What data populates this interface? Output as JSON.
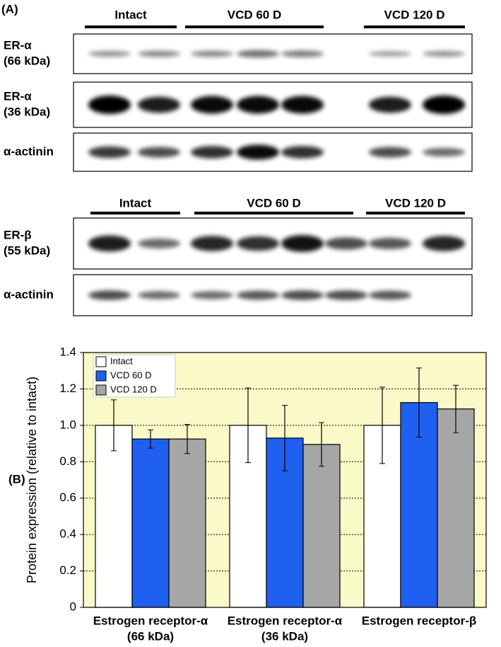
{
  "panel_a": {
    "label": "(A)",
    "blots": [
      {
        "groups": [
          "Intact",
          "VCD 60 D",
          "VCD 120 D"
        ],
        "rows": [
          [
            "ER-α",
            "(66 kDa)"
          ],
          [
            "ER-α",
            "(36 kDa)"
          ],
          [
            "α-actinin"
          ]
        ]
      },
      {
        "groups": [
          "Intact",
          "VCD 60 D",
          "VCD 120 D"
        ],
        "rows": [
          [
            "ER-β",
            "(55 kDa)"
          ],
          [
            "α-actinin"
          ]
        ]
      }
    ]
  },
  "chart_data": {
    "type": "bar",
    "panel_label": "(B)",
    "y_label": "Protein expression (relative to intact)",
    "categories": [
      [
        "Estrogen receptor-α",
        "(66 kDa)"
      ],
      [
        "Estrogen receptor-α",
        "(36 kDa)"
      ],
      [
        "Estrogen receptor-β"
      ]
    ],
    "series": [
      {
        "name": "Intact",
        "color": "#ffffff",
        "values": [
          1,
          1,
          1
        ],
        "errors": [
          0.14,
          0.205,
          0.21
        ]
      },
      {
        "name": "VCD 60 D",
        "color": "#2060f0",
        "values": [
          0.925,
          0.93,
          1.125
        ],
        "errors": [
          0.05,
          0.18,
          0.19
        ]
      },
      {
        "name": "VCD 120 D",
        "color": "#a6a6a6",
        "values": [
          0.925,
          0.895,
          1.09
        ],
        "errors": [
          0.08,
          0.12,
          0.13
        ]
      }
    ],
    "ylim": [
      0,
      1.4
    ],
    "yticks": [
      0,
      0.2,
      0.4,
      0.6,
      0.8,
      {
        "value": 1,
        "label": "1.0"
      },
      1.2,
      1.4
    ],
    "grid": true,
    "legend": "top-left",
    "background": "#fafac8"
  }
}
